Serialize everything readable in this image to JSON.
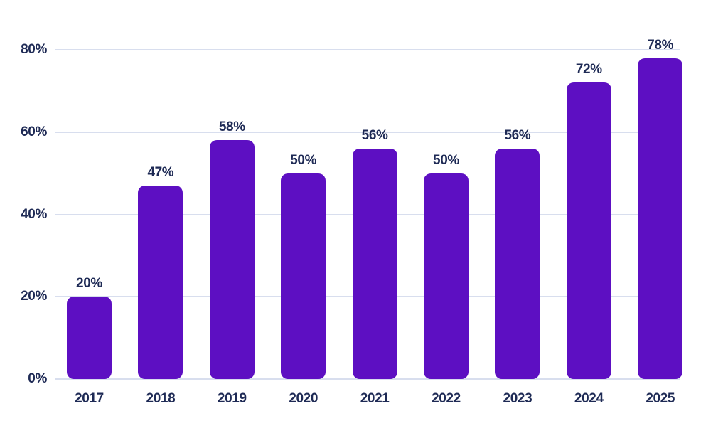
{
  "chart_data": {
    "type": "bar",
    "title": "",
    "xlabel": "",
    "ylabel": "",
    "categories": [
      "2017",
      "2018",
      "2019",
      "2020",
      "2021",
      "2022",
      "2023",
      "2024",
      "2025"
    ],
    "values": [
      20,
      47,
      58,
      50,
      56,
      50,
      56,
      72,
      78
    ],
    "value_labels": [
      "20%",
      "47%",
      "58%",
      "50%",
      "56%",
      "50%",
      "56%",
      "72%",
      "78%"
    ],
    "ylim": [
      0,
      80
    ],
    "yticks": [
      0,
      20,
      40,
      60,
      80
    ],
    "ytick_labels": [
      "0%",
      "20%",
      "40%",
      "60%",
      "80%"
    ],
    "grid": true,
    "legend": false,
    "legend_position": "none",
    "colors": {
      "bar": "#5d0fc2",
      "label_text": "#1e2a55",
      "gridline": "#d8deee",
      "background": "#ffffff"
    }
  }
}
